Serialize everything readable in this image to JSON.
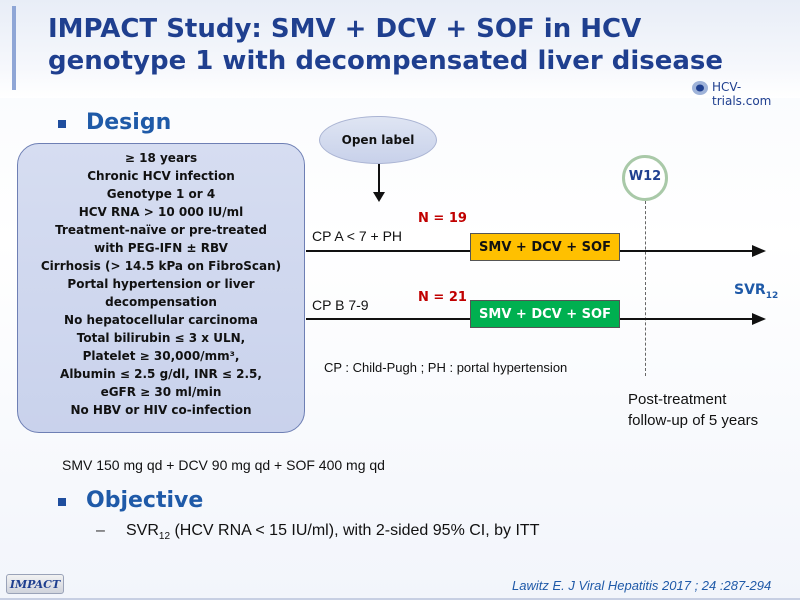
{
  "title": {
    "line1": "IMPACT Study: SMV + DCV + SOF in HCV",
    "line2": "genotype 1 with decompensated liver disease"
  },
  "logo": {
    "text": "HCV-trials.com",
    "color": "#1f3f8f"
  },
  "design": {
    "heading": "Design",
    "criteria": [
      "≥ 18 years",
      "Chronic HCV infection",
      "Genotype 1 or 4",
      "HCV RNA > 10 000 IU/ml",
      "Treatment-naïve or pre-treated",
      "with PEG-IFN ± RBV",
      "Cirrhosis (> 14.5 kPa on FibroScan)",
      "Portal hypertension or  liver",
      "decompensation",
      "No hepatocellular carcinoma",
      "Total bilirubin ≤ 3 x ULN,",
      "Platelet ≥ 30,000/mm³,",
      "Albumin ≤ 2.5 g/dl, INR ≤ 2.5,",
      "eGFR ≥ 30 ml/min",
      "No HBV or HIV co-infection"
    ],
    "open_label": "Open label",
    "timepoint": "W12",
    "arms": [
      {
        "label": "CP A < 7 + PH",
        "n": "N = 19",
        "treatment": "SMV + DCV + SOF",
        "color": "#ffc000"
      },
      {
        "label": "CP B 7-9",
        "n": "N = 21",
        "treatment": "SMV + DCV + SOF",
        "color": "#00b050"
      }
    ],
    "endpoint": {
      "main": "SVR",
      "sub": "12"
    },
    "abbrev_note": "CP : Child-Pugh ; PH : portal hypertension",
    "followup_line1": "Post-treatment",
    "followup_line2": "follow-up  of 5 years",
    "dosing": "SMV  150 mg qd + DCV  90 mg qd + SOF  400 mg qd"
  },
  "objective": {
    "heading": "Objective",
    "dash": "–",
    "item_main": "SVR",
    "item_sub": "12",
    "item_rest": " (HCV RNA < 15 IU/ml), with 2-sided 95% CI, by ITT"
  },
  "footer": {
    "badge": "IMPACT",
    "citation": "Lawitz  E. J Viral Hepatitis 2017 ; 24 :287-294"
  }
}
